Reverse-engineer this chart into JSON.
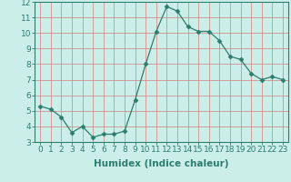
{
  "title": "",
  "xlabel": "Humidex (Indice chaleur)",
  "x": [
    0,
    1,
    2,
    3,
    4,
    5,
    6,
    7,
    8,
    9,
    10,
    11,
    12,
    13,
    14,
    15,
    16,
    17,
    18,
    19,
    20,
    21,
    22,
    23
  ],
  "y": [
    5.3,
    5.1,
    4.6,
    3.6,
    4.0,
    3.3,
    3.5,
    3.5,
    3.7,
    5.7,
    8.0,
    10.1,
    11.7,
    11.4,
    10.4,
    10.1,
    10.1,
    9.5,
    8.5,
    8.3,
    7.4,
    7.0,
    7.2,
    7.0
  ],
  "line_color": "#2d7d6e",
  "marker": "D",
  "marker_size": 2.5,
  "bg_color": "#cceee8",
  "grid_color": "#b0d8d0",
  "xlim": [
    -0.5,
    23.5
  ],
  "ylim": [
    3,
    12
  ],
  "yticks": [
    3,
    4,
    5,
    6,
    7,
    8,
    9,
    10,
    11,
    12
  ],
  "xticks": [
    0,
    1,
    2,
    3,
    4,
    5,
    6,
    7,
    8,
    9,
    10,
    11,
    12,
    13,
    14,
    15,
    16,
    17,
    18,
    19,
    20,
    21,
    22,
    23
  ],
  "tick_color": "#2d7d6e",
  "label_fontsize": 6.5,
  "xlabel_fontsize": 7.5,
  "axis_color": "#2d7d6e",
  "spine_color": "#2d7d6e"
}
